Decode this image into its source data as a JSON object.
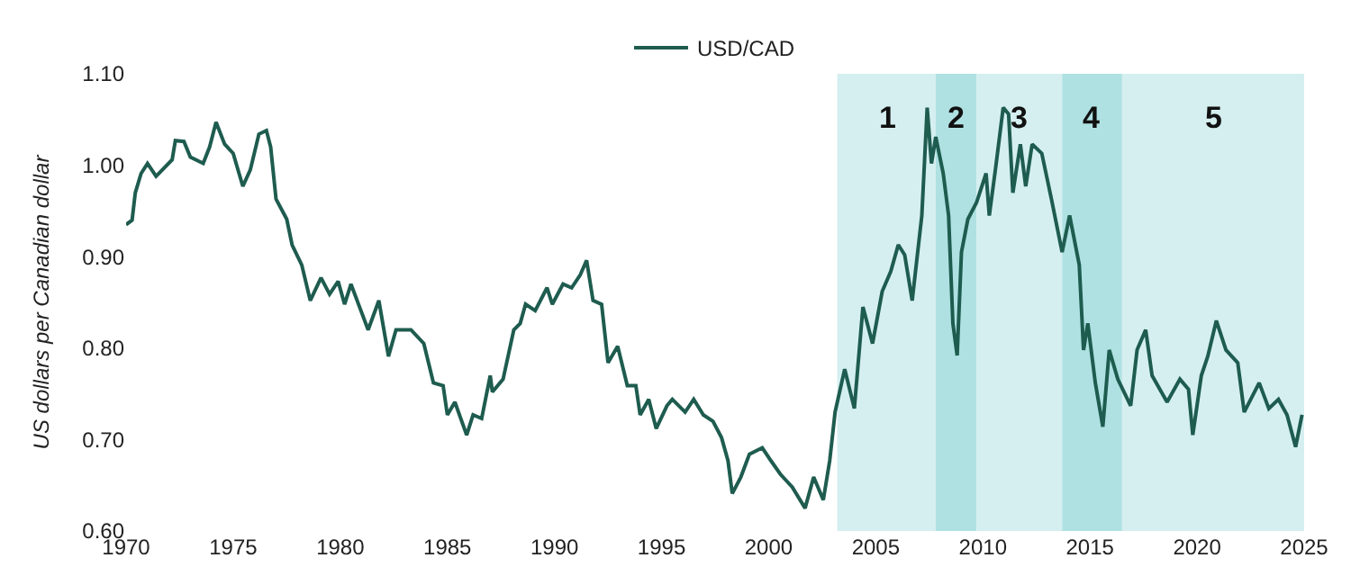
{
  "chart_data": {
    "type": "line",
    "ylabel": "US dollars per Canadian dollar",
    "legend": "top",
    "xlim": [
      1970,
      2025
    ],
    "xticks": [
      1970,
      1975,
      1980,
      1985,
      1990,
      1995,
      2000,
      2005,
      2010,
      2015,
      2020,
      2025
    ],
    "ylim": [
      0.6,
      1.1
    ],
    "yticks": [
      {
        "value": 0.6,
        "label": "0.60"
      },
      {
        "value": 0.7,
        "label": "0.70"
      },
      {
        "value": 0.8,
        "label": "0.80"
      },
      {
        "value": 0.9,
        "label": "0.90"
      },
      {
        "value": 1.0,
        "label": "1.00"
      },
      {
        "value": 1.1,
        "label": "1.10"
      }
    ],
    "grid": false,
    "marker": "none",
    "line_style": "solid",
    "bands": [
      {
        "axis": "x",
        "from": 2003.2,
        "to": 2007.8,
        "color": "#d5eff0",
        "label": "1"
      },
      {
        "axis": "x",
        "from": 2007.8,
        "to": 2009.7,
        "color": "#afe1e2",
        "label": "2"
      },
      {
        "axis": "x",
        "from": 2009.7,
        "to": 2013.7,
        "color": "#d5eff0",
        "label": "3"
      },
      {
        "axis": "x",
        "from": 2013.7,
        "to": 2016.5,
        "color": "#afe1e2",
        "label": "4"
      },
      {
        "axis": "x",
        "from": 2016.5,
        "to": 2025,
        "color": "#d5eff0",
        "label": "5"
      }
    ],
    "x": [
      1970.0,
      1970.28,
      1970.43,
      1970.7,
      1971.0,
      1971.4,
      1972.15,
      1972.3,
      1972.7,
      1973.0,
      1973.6,
      1973.9,
      1974.2,
      1974.6,
      1975.0,
      1975.45,
      1975.8,
      1976.2,
      1976.55,
      1976.75,
      1977.0,
      1977.5,
      1977.75,
      1978.2,
      1978.6,
      1979.1,
      1979.5,
      1979.9,
      1980.2,
      1980.5,
      1980.9,
      1981.3,
      1981.8,
      1982.25,
      1982.6,
      1983.3,
      1983.9,
      1984.35,
      1984.8,
      1985.0,
      1985.35,
      1985.9,
      1986.2,
      1986.6,
      1987.0,
      1987.1,
      1987.6,
      1988.1,
      1988.4,
      1988.65,
      1989.1,
      1989.65,
      1989.9,
      1990.4,
      1990.8,
      1991.2,
      1991.5,
      1991.8,
      1992.2,
      1992.5,
      1992.95,
      1993.4,
      1993.8,
      1994.0,
      1994.4,
      1994.75,
      1995.25,
      1995.5,
      1996.1,
      1996.5,
      1996.95,
      1997.4,
      1997.8,
      1998.1,
      1998.3,
      1998.7,
      1999.1,
      1999.7,
      2000.1,
      2000.55,
      2001.1,
      2001.7,
      2002.1,
      2002.55,
      2002.85,
      2003.1,
      2003.55,
      2004.0,
      2004.4,
      2004.85,
      2005.3,
      2005.7,
      2006.05,
      2006.35,
      2006.7,
      2007.15,
      2007.4,
      2007.6,
      2007.8,
      2008.15,
      2008.4,
      2008.6,
      2008.8,
      2009.0,
      2009.3,
      2009.7,
      2010.15,
      2010.3,
      2010.6,
      2010.95,
      2011.2,
      2011.4,
      2011.75,
      2012.0,
      2012.3,
      2012.75,
      2013.2,
      2013.7,
      2014.05,
      2014.5,
      2014.7,
      2014.9,
      2015.25,
      2015.6,
      2015.9,
      2016.3,
      2016.9,
      2017.2,
      2017.6,
      2017.9,
      2018.6,
      2019.2,
      2019.6,
      2019.8,
      2020.2,
      2020.5,
      2020.9,
      2021.35,
      2021.9,
      2022.2,
      2022.9,
      2023.35,
      2023.8,
      2024.2,
      2024.6,
      2024.9
    ],
    "series": [
      {
        "name": "USD/CAD",
        "color": "#1e5c4f",
        "values": [
          0.935,
          0.94,
          0.97,
          0.991,
          1.002,
          0.988,
          1.006,
          1.027,
          1.026,
          1.009,
          1.002,
          1.02,
          1.047,
          1.023,
          1.013,
          0.977,
          0.995,
          1.034,
          1.038,
          1.02,
          0.963,
          0.941,
          0.913,
          0.891,
          0.852,
          0.877,
          0.859,
          0.873,
          0.848,
          0.87,
          0.845,
          0.82,
          0.852,
          0.791,
          0.82,
          0.82,
          0.805,
          0.762,
          0.759,
          0.727,
          0.741,
          0.705,
          0.727,
          0.723,
          0.77,
          0.752,
          0.766,
          0.82,
          0.827,
          0.848,
          0.841,
          0.866,
          0.848,
          0.87,
          0.866,
          0.88,
          0.896,
          0.852,
          0.848,
          0.784,
          0.802,
          0.759,
          0.759,
          0.727,
          0.744,
          0.712,
          0.737,
          0.744,
          0.73,
          0.744,
          0.727,
          0.72,
          0.702,
          0.677,
          0.641,
          0.659,
          0.684,
          0.691,
          0.677,
          0.662,
          0.648,
          0.625,
          0.659,
          0.634,
          0.677,
          0.73,
          0.777,
          0.734,
          0.845,
          0.805,
          0.862,
          0.884,
          0.913,
          0.902,
          0.852,
          0.945,
          1.063,
          1.002,
          1.031,
          0.991,
          0.945,
          0.827,
          0.792,
          0.905,
          0.941,
          0.959,
          0.991,
          0.945,
          0.998,
          1.063,
          1.056,
          0.97,
          1.023,
          0.977,
          1.023,
          1.013,
          0.963,
          0.905,
          0.945,
          0.891,
          0.798,
          0.827,
          0.762,
          0.714,
          0.798,
          0.766,
          0.737,
          0.798,
          0.82,
          0.77,
          0.741,
          0.766,
          0.755,
          0.705,
          0.77,
          0.791,
          0.83,
          0.798,
          0.784,
          0.73,
          0.762,
          0.734,
          0.744,
          0.727,
          0.692,
          0.727
        ]
      }
    ]
  }
}
